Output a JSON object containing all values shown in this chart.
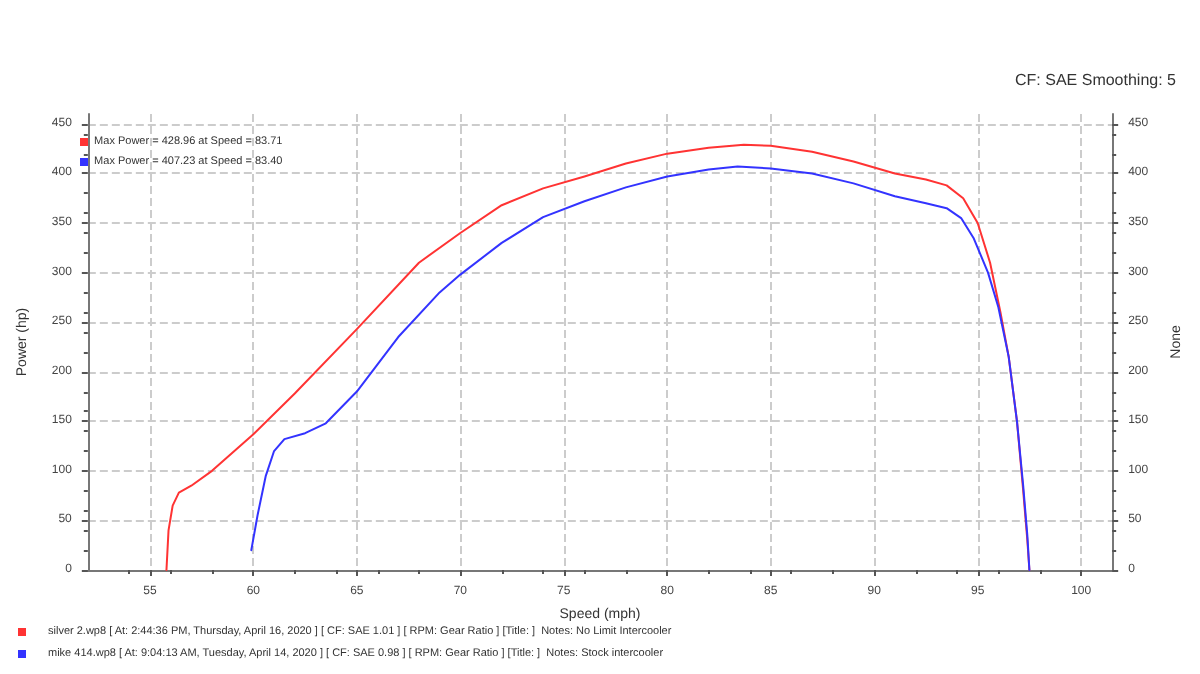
{
  "chart_data": {
    "type": "line",
    "xlabel": "Speed (mph)",
    "ylabel": "Power (hp)",
    "y2label": "None",
    "annotations": [
      "CF: SAE Smoothing: 5",
      "Max Power = 428.96 at Speed = 83.71",
      "Max Power = 407.23 at Speed = 83.40"
    ],
    "xlim": [
      52,
      101.5
    ],
    "xticks": [
      55,
      60,
      65,
      70,
      75,
      80,
      85,
      90,
      95,
      100
    ],
    "ylim": [
      0,
      460
    ],
    "yticks": [
      0,
      50,
      100,
      150,
      200,
      250,
      300,
      350,
      400,
      450
    ],
    "y2lim": [
      0,
      460
    ],
    "y2ticks": [
      0,
      50,
      100,
      150,
      200,
      250,
      300,
      350,
      400,
      450
    ],
    "grid": true,
    "legend": "bottom",
    "marker": "none",
    "line_style": "solid",
    "series": [
      {
        "name": "silver 2.wp8 [ At: 2:44:36 PM, Thursday, April 16, 2020 ] [ CF: SAE 1.01 ] [ RPM: Gear Ratio ] [Title: ]  Notes: No Limit Intercooler",
        "color": "#ff3333",
        "x": [
          55.8,
          55.9,
          56.1,
          56.4,
          57,
          58,
          60,
          62,
          65,
          68,
          70,
          72,
          74,
          76,
          78,
          80,
          82,
          83.7,
          85,
          87,
          89,
          91,
          92.5,
          93.5,
          94.3,
          95,
          95.6,
          96.1,
          96.5,
          96.9,
          97.2,
          97.4,
          97.5
        ],
        "values": [
          0,
          40,
          65,
          78,
          85,
          100,
          137,
          178,
          243,
          310,
          340,
          368,
          385,
          397,
          410,
          420,
          426,
          429,
          428,
          422,
          412,
          400,
          394,
          388,
          375,
          350,
          310,
          260,
          215,
          150,
          80,
          30,
          0
        ]
      },
      {
        "name": "mike 414.wp8 [ At: 9:04:13 AM, Tuesday, April 14, 2020 ] [ CF: SAE 0.98 ] [ RPM: Gear Ratio ] [Title: ]  Notes: Stock intercooler",
        "color": "#3333ff",
        "x": [
          59.9,
          60.2,
          60.6,
          61,
          61.5,
          62.5,
          63.5,
          65,
          67,
          69,
          70,
          72,
          74,
          76,
          78,
          80,
          82,
          83.4,
          85,
          87,
          89,
          91,
          92.5,
          93.5,
          94.2,
          94.8,
          95.5,
          96,
          96.5,
          96.9,
          97.2,
          97.4,
          97.5
        ],
        "values": [
          20,
          55,
          95,
          120,
          132,
          138,
          148,
          180,
          235,
          280,
          298,
          330,
          356,
          372,
          386,
          397,
          404,
          407,
          405,
          400,
          390,
          377,
          370,
          365,
          355,
          335,
          300,
          265,
          215,
          150,
          85,
          35,
          0
        ]
      }
    ]
  }
}
